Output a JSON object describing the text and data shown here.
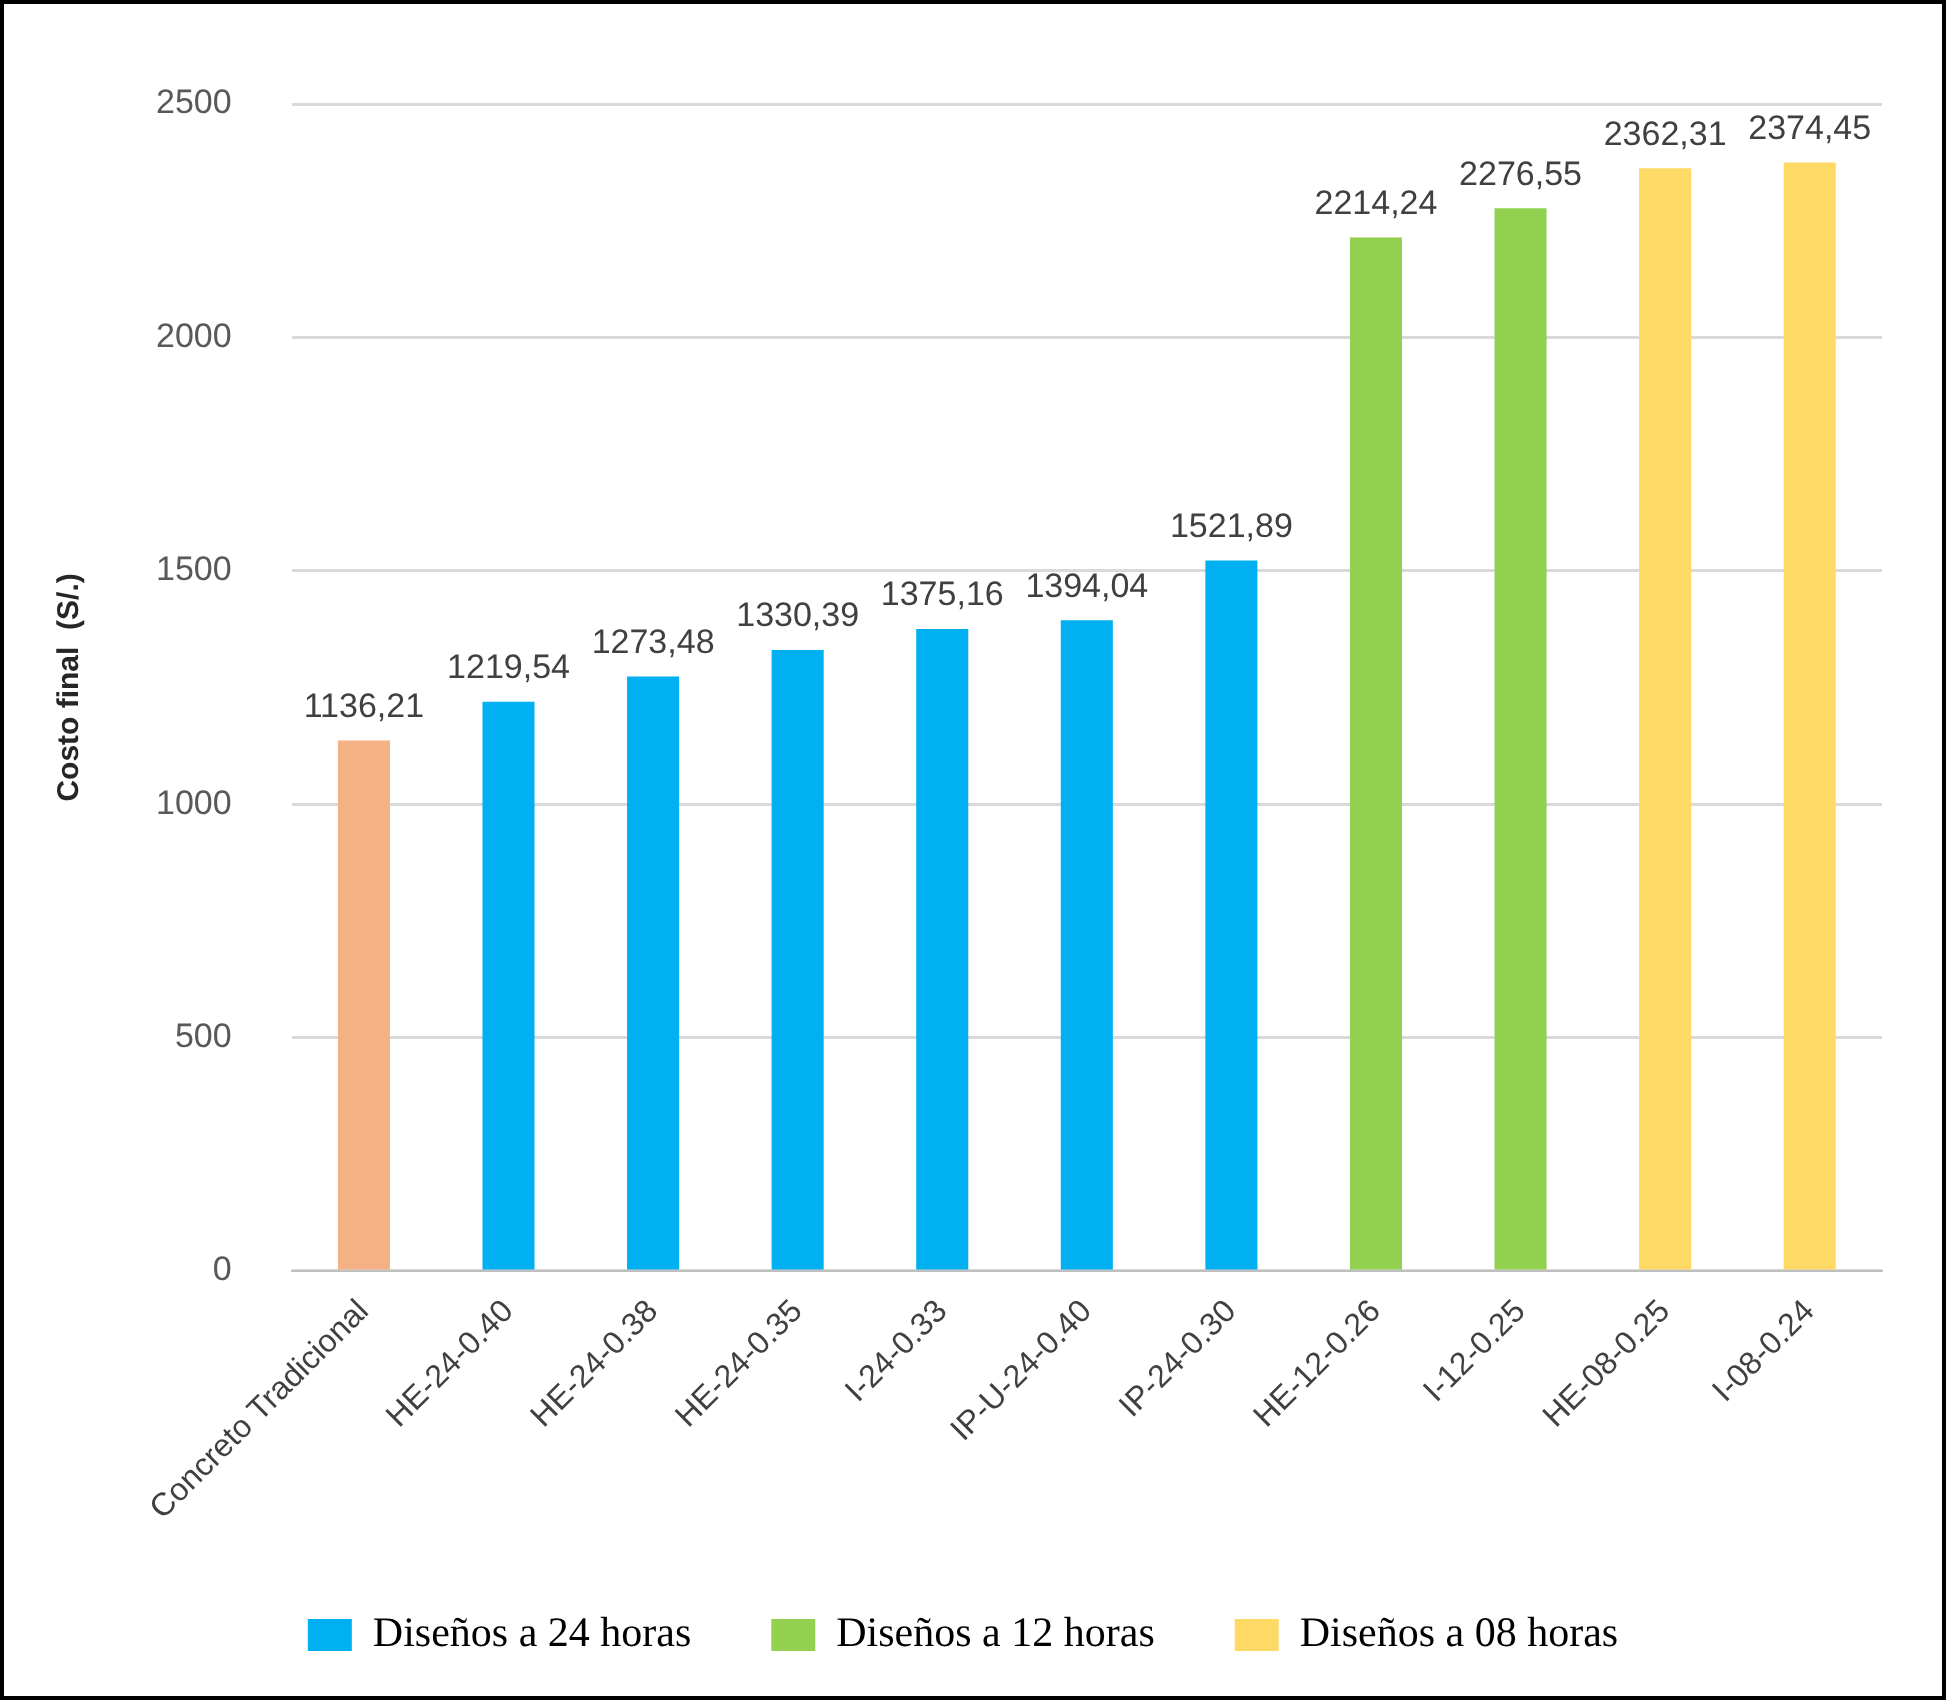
{
  "chart_data": {
    "type": "bar",
    "ylabel": "Costo final  (S/.)",
    "categories": [
      "Concreto Tradicional",
      "HE-24-0.40",
      "HE-24-0.38",
      "HE-24-0.35",
      "I-24-0.33",
      "IP-U-24-0.40",
      "IP-24-0.30",
      "HE-12-0.26",
      "I-12-0.25",
      "HE-08-0.25",
      "I-08-0.24"
    ],
    "series": [
      {
        "color": "#f4b183",
        "values": [
          1136.21,
          null,
          null,
          null,
          null,
          null,
          null,
          null,
          null,
          null,
          null
        ],
        "value_labels": [
          "1136,21",
          null,
          null,
          null,
          null,
          null,
          null,
          null,
          null,
          null,
          null
        ]
      },
      {
        "name": "Diseños a 24 horas",
        "color": "#00b0f0",
        "values": [
          null,
          1219.54,
          1273.48,
          1330.39,
          1375.16,
          1394.04,
          1521.89,
          null,
          null,
          null,
          null
        ],
        "value_labels": [
          null,
          "1219,54",
          "1273,48",
          "1330,39",
          "1375,16",
          "1394,04",
          "1521,89",
          null,
          null,
          null,
          null
        ]
      },
      {
        "name": "Diseños a 12 horas",
        "color": "#92d050",
        "values": [
          null,
          null,
          null,
          null,
          null,
          null,
          null,
          2214.24,
          2276.55,
          null,
          null
        ],
        "value_labels": [
          null,
          null,
          null,
          null,
          null,
          null,
          null,
          "2214,24",
          "2276,55",
          null,
          null
        ]
      },
      {
        "name": "Diseños a 08 horas",
        "color": "#ffd966",
        "values": [
          null,
          null,
          null,
          null,
          null,
          null,
          null,
          null,
          null,
          2362.31,
          2374.45
        ],
        "value_labels": [
          null,
          null,
          null,
          null,
          null,
          null,
          null,
          null,
          null,
          "2362,31",
          "2374,45"
        ]
      }
    ],
    "ylim": [
      0,
      2500
    ],
    "yticks": [
      0,
      500,
      1000,
      1500,
      2000,
      2500
    ],
    "grid": "y",
    "legend": "bottom"
  }
}
